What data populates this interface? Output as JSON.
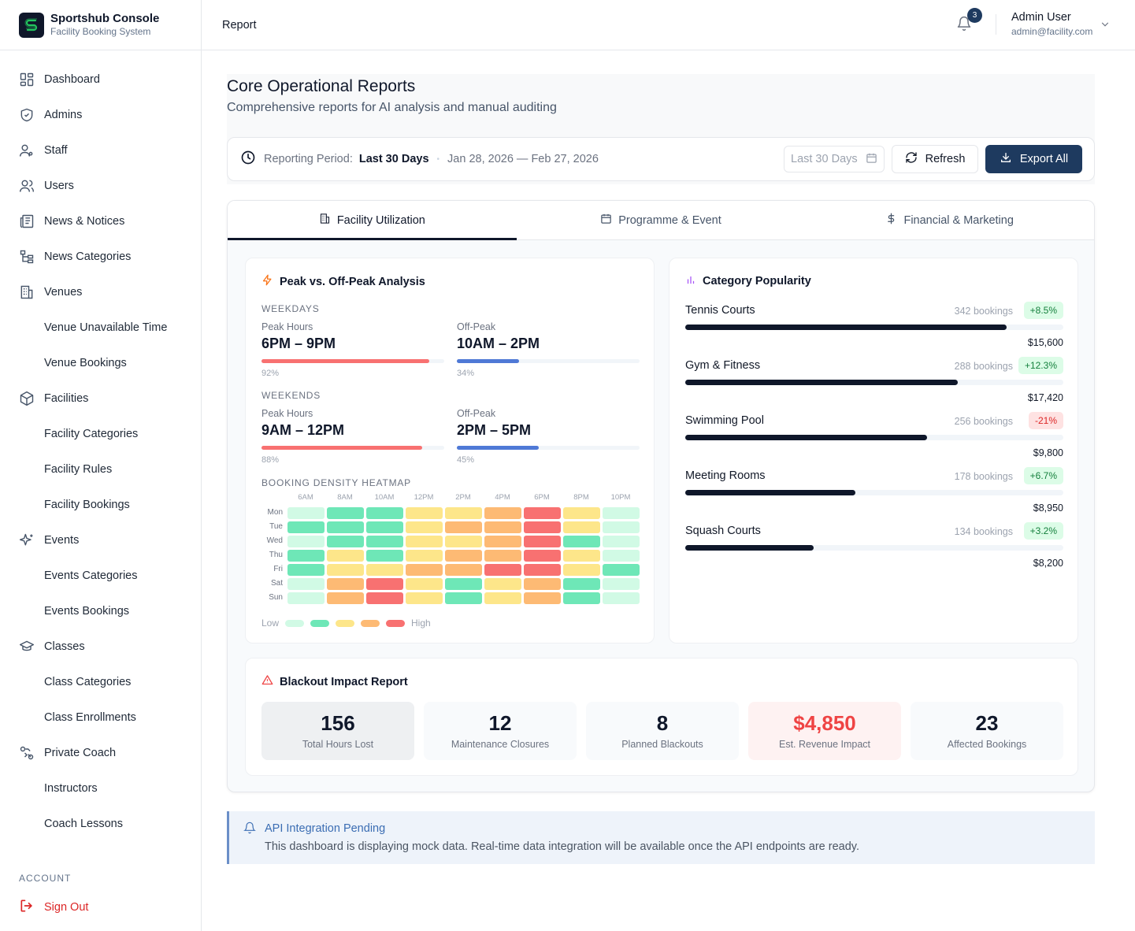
{
  "brand": {
    "title": "Sportshub Console",
    "subtitle": "Facility Booking System"
  },
  "sidebar": {
    "items": [
      {
        "label": "Dashboard",
        "icon": "dashboard-icon",
        "sub": false
      },
      {
        "label": "Admins",
        "icon": "shield-icon",
        "sub": false
      },
      {
        "label": "Staff",
        "icon": "staff-icon",
        "sub": false
      },
      {
        "label": "Users",
        "icon": "users-icon",
        "sub": false
      },
      {
        "label": "News & Notices",
        "icon": "newspaper-icon",
        "sub": false
      },
      {
        "label": "News Categories",
        "icon": "tree-icon",
        "sub": false
      },
      {
        "label": "Venues",
        "icon": "building-icon",
        "sub": false
      },
      {
        "label": "Venue Unavailable Time",
        "sub": true
      },
      {
        "label": "Venue Bookings",
        "sub": true
      },
      {
        "label": "Facilities",
        "icon": "box-icon",
        "sub": false
      },
      {
        "label": "Facility Categories",
        "sub": true
      },
      {
        "label": "Facility Rules",
        "sub": true
      },
      {
        "label": "Facility Bookings",
        "sub": true
      },
      {
        "label": "Events",
        "icon": "sparkles-icon",
        "sub": false
      },
      {
        "label": "Events Categories",
        "sub": true
      },
      {
        "label": "Events Bookings",
        "sub": true
      },
      {
        "label": "Classes",
        "icon": "graduation-cap-icon",
        "sub": false
      },
      {
        "label": "Class Categories",
        "sub": true
      },
      {
        "label": "Class Enrollments",
        "sub": true
      },
      {
        "label": "Private Coach",
        "icon": "coach-icon",
        "sub": false
      },
      {
        "label": "Instructors",
        "sub": true
      },
      {
        "label": "Coach Lessons",
        "sub": true
      }
    ],
    "account_label": "ACCOUNT",
    "signout_label": "Sign Out"
  },
  "topbar": {
    "breadcrumb": "Report",
    "notification_count": "3",
    "user_name": "Admin User",
    "user_email": "admin@facility.com"
  },
  "page": {
    "title": "Core Operational Reports",
    "subtitle": "Comprehensive reports for AI analysis and manual auditing"
  },
  "period": {
    "label": "Reporting Period:",
    "value": "Last 30 Days",
    "range": "Jan 28, 2026 — Feb 27, 2026",
    "select_value": "Last 30 Days",
    "refresh_label": "Refresh",
    "export_label": "Export All"
  },
  "tabs": [
    {
      "label": "Facility Utilization",
      "icon": "building-icon",
      "active": true
    },
    {
      "label": "Programme & Event",
      "icon": "calendar-icon",
      "active": false
    },
    {
      "label": "Financial & Marketing",
      "icon": "dollar-icon",
      "active": false
    }
  ],
  "peak": {
    "title": "Peak vs. Off-Peak Analysis",
    "weekdays_label": "WEEKDAYS",
    "weekends_label": "WEEKENDS",
    "weekdays": [
      {
        "label": "Peak Hours",
        "time": "6PM – 9PM",
        "pct": "92%",
        "value": 0.92,
        "color": "#f87171"
      },
      {
        "label": "Off-Peak",
        "time": "10AM – 2PM",
        "pct": "34%",
        "value": 0.34,
        "color": "#4f79d6"
      }
    ],
    "weekends": [
      {
        "label": "Peak Hours",
        "time": "9AM – 12PM",
        "pct": "88%",
        "value": 0.88,
        "color": "#f87171"
      },
      {
        "label": "Off-Peak",
        "time": "2PM – 5PM",
        "pct": "45%",
        "value": 0.45,
        "color": "#4f79d6"
      }
    ],
    "heatmap_label": "BOOKING DENSITY HEATMAP",
    "hours": [
      "6AM",
      "8AM",
      "10AM",
      "12PM",
      "2PM",
      "4PM",
      "6PM",
      "8PM",
      "10PM"
    ],
    "days": [
      "Mon",
      "Tue",
      "Wed",
      "Thu",
      "Fri",
      "Sat",
      "Sun"
    ],
    "levels": [
      [
        0,
        1,
        1,
        2,
        2,
        3,
        4,
        2,
        0
      ],
      [
        1,
        1,
        1,
        2,
        3,
        3,
        4,
        2,
        0
      ],
      [
        0,
        1,
        1,
        2,
        2,
        3,
        4,
        1,
        0
      ],
      [
        1,
        2,
        1,
        2,
        3,
        3,
        4,
        2,
        0
      ],
      [
        1,
        2,
        2,
        3,
        3,
        4,
        4,
        2,
        1
      ],
      [
        0,
        3,
        4,
        2,
        1,
        2,
        3,
        1,
        0
      ],
      [
        0,
        3,
        4,
        2,
        1,
        2,
        3,
        1,
        0
      ]
    ],
    "level_colors": [
      "#d1fae5",
      "#6ee7b7",
      "#fde68a",
      "#fdba74",
      "#f87171"
    ],
    "legend_low": "Low",
    "legend_high": "High"
  },
  "popularity": {
    "title": "Category Popularity",
    "items": [
      {
        "name": "Tennis Courts",
        "bookings": "342 bookings",
        "change": "+8.5%",
        "trend": "up",
        "revenue": "$15,600",
        "share": 0.85
      },
      {
        "name": "Gym & Fitness",
        "bookings": "288 bookings",
        "change": "+12.3%",
        "trend": "up",
        "revenue": "$17,420",
        "share": 0.72
      },
      {
        "name": "Swimming Pool",
        "bookings": "256 bookings",
        "change": "-21%",
        "trend": "down",
        "revenue": "$9,800",
        "share": 0.64
      },
      {
        "name": "Meeting Rooms",
        "bookings": "178 bookings",
        "change": "+6.7%",
        "trend": "up",
        "revenue": "$8,950",
        "share": 0.45
      },
      {
        "name": "Squash Courts",
        "bookings": "134 bookings",
        "change": "+3.2%",
        "trend": "up",
        "revenue": "$8,200",
        "share": 0.34
      }
    ]
  },
  "blackout": {
    "title": "Blackout Impact Report",
    "stats": [
      {
        "value": "156",
        "label": "Total Hours Lost",
        "style": "dark"
      },
      {
        "value": "12",
        "label": "Maintenance Closures",
        "style": ""
      },
      {
        "value": "8",
        "label": "Planned Blackouts",
        "style": ""
      },
      {
        "value": "$4,850",
        "label": "Est. Revenue Impact",
        "style": "alert"
      },
      {
        "value": "23",
        "label": "Affected Bookings",
        "style": ""
      }
    ]
  },
  "notice": {
    "title": "API Integration Pending",
    "body": "This dashboard is displaying mock data. Real-time data integration will be available once the API endpoints are ready."
  },
  "colors": {
    "primary": "#1e3a5f",
    "danger": "#dc2626",
    "success": "#15803d",
    "info": "#3b6db3"
  }
}
